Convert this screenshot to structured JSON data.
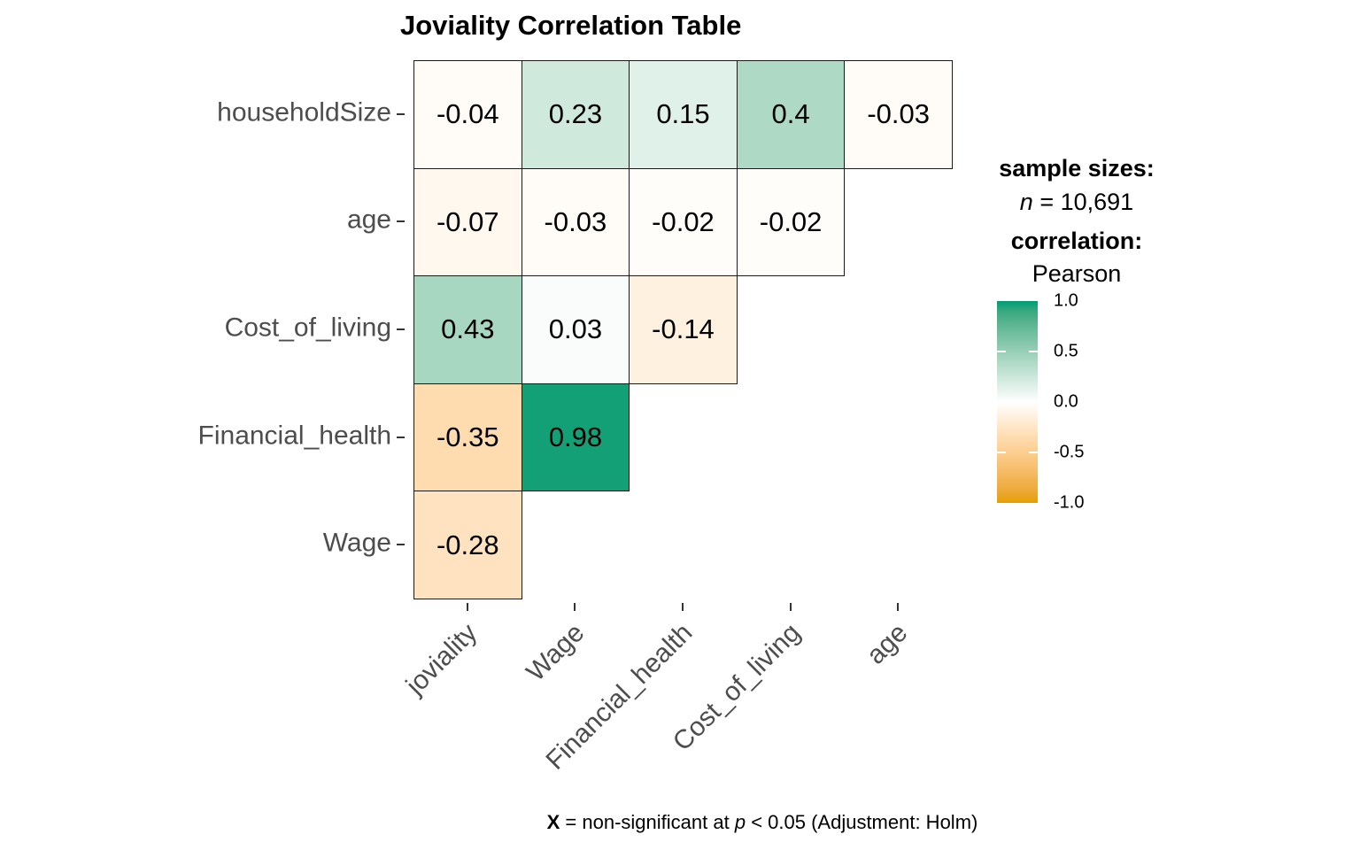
{
  "title": "Joviality Correlation Table",
  "legend": {
    "sample_sizes_label": "sample sizes:",
    "n_symbol": "n",
    "n_value": " = 10,691",
    "correlation_label": "correlation:",
    "method": "Pearson",
    "colorbar": {
      "ticks": [
        "1.0",
        "0.5",
        "0.0",
        "-0.5",
        "-1.0"
      ],
      "tick_values": [
        1.0,
        0.5,
        0.0,
        -0.5,
        -1.0
      ],
      "high_color": "#009E73",
      "mid_color": "#FFFFFF",
      "low_color": "#E69F00"
    }
  },
  "caption": {
    "x_symbol": "X",
    "segment1": " = non-significant at ",
    "p_symbol": "p",
    "segment2": " < 0.05 (Adjustment: Holm)"
  },
  "chart_data": {
    "type": "heatmap",
    "title": "Joviality Correlation Table",
    "rows": [
      "householdSize",
      "age",
      "Cost_of_living",
      "Financial_health",
      "Wage"
    ],
    "columns": [
      "joviality",
      "Wage",
      "Financial_health",
      "Cost_of_living",
      "age"
    ],
    "values": [
      [
        -0.04,
        0.23,
        0.15,
        0.4,
        -0.03
      ],
      [
        -0.07,
        -0.03,
        -0.02,
        -0.02,
        null
      ],
      [
        0.43,
        0.03,
        -0.14,
        null,
        null
      ],
      [
        -0.35,
        0.98,
        null,
        null,
        null
      ],
      [
        -0.28,
        null,
        null,
        null,
        null
      ]
    ],
    "value_domain": [
      -1,
      1
    ],
    "colors": {
      "low": "#E69F00",
      "mid": "#FFFFFF",
      "high": "#009E73"
    },
    "legend_position": "right",
    "sample_size_text": "n = 10,691",
    "correlation_method": "Pearson",
    "caption_text": "X = non-significant at p < 0.05 (Adjustment: Holm)",
    "grid": false
  }
}
